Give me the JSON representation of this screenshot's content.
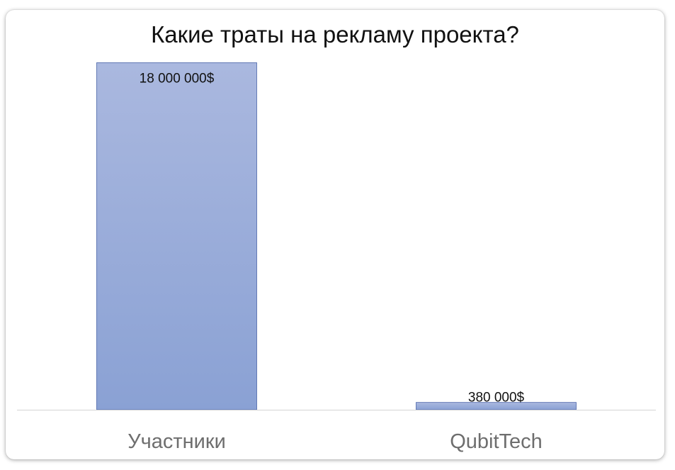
{
  "chart_data": {
    "type": "bar",
    "title": "Какие траты на рекламу проекта?",
    "categories": [
      "Участники",
      "QubitTech"
    ],
    "series": [
      {
        "values": [
          18000000,
          380000
        ],
        "data_labels": [
          "18 000 000$",
          "380 000$"
        ]
      }
    ],
    "ylim": [
      0,
      18900000
    ],
    "grid": false,
    "legend": "none",
    "colors": {
      "bar_top": "#aab8df",
      "bar_bottom": "#8aa1d4",
      "bar_stroke": "#4a64a8",
      "axis": "#d4d4d4",
      "category_text": "#6e6e6e",
      "label_text": "#111111"
    }
  }
}
